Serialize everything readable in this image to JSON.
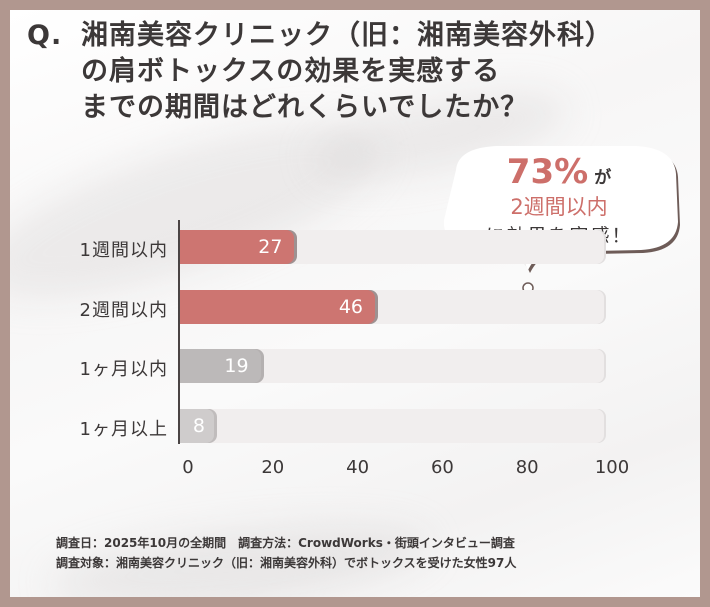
{
  "title": {
    "prefix": "Q.",
    "lines": [
      "湘南美容クリニック（旧：湘南美容外科）",
      "の肩ボトックスの効果を実感する",
      "までの期間はどれくらいでしたか？"
    ]
  },
  "callout": {
    "percent": "73%",
    "particle": "が",
    "highlight": "2週間以内",
    "text": "に効果を実感！"
  },
  "notes": {
    "line1": "調査日：2025年10月の全期間　調査方法：CrowdWorks・街頭インタビュー調査",
    "line2": "調査対象：湘南美容クリニック（旧：湘南美容外科）でボトックスを受けた女性97人"
  },
  "colors": {
    "highlight_bar": "#cd7571",
    "gray_bar": "#bcb9b9",
    "light_bar": "#cfcccc",
    "track": "#f1eeee",
    "frame": "#b1978f",
    "accent_text": "#cd6f6a"
  },
  "chart_data": {
    "type": "bar",
    "orientation": "horizontal",
    "title": "湘南美容クリニック（旧：湘南美容外科）の肩ボトックスの効果を実感するまでの期間はどれくらいでしたか？",
    "categories": [
      "1週間以内",
      "2週間以内",
      "1ヶ月以内",
      "1ヶ月以上"
    ],
    "values": [
      27,
      46,
      19,
      8
    ],
    "xlabel": "",
    "ylabel": "",
    "xlim": [
      0,
      100
    ],
    "xticks": [
      "0",
      "20",
      "40",
      "60",
      "80",
      "100"
    ],
    "grid": false,
    "legend": null,
    "annotation": "73% が 2週間以内 に効果を実感！",
    "n": 97
  }
}
